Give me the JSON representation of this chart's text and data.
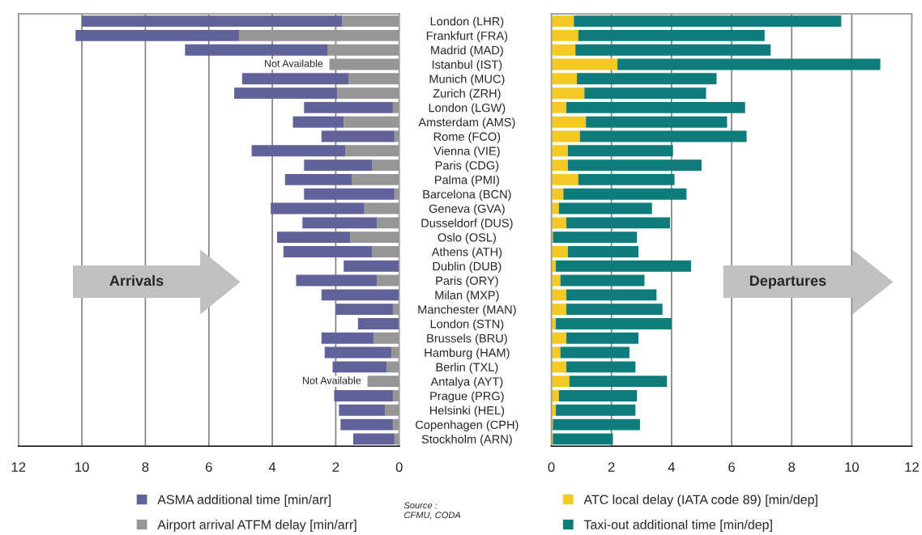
{
  "chart_data": [
    {
      "type": "bar",
      "orientation": "horizontal",
      "stacked": true,
      "tick_labels": "x",
      "grid": "x",
      "legend": "bottom",
      "categories": [
        "London (LHR)",
        "Frankfurt (FRA)",
        "Madrid (MAD)",
        "Istanbul (IST)",
        "Munich (MUC)",
        "Zurich (ZRH)",
        "London (LGW)",
        "Amsterdam (AMS)",
        "Rome (FCO)",
        "Vienna (VIE)",
        "Paris (CDG)",
        "Palma (PMI)",
        "Barcelona (BCN)",
        "Geneva (GVA)",
        "Dusseldorf (DUS)",
        "Oslo (OSL)",
        "Athens (ATH)",
        "Dublin (DUB)",
        "Paris (ORY)",
        "Milan (MXP)",
        "Manchester (MAN)",
        "London (STN)",
        "Brussels (BRU)",
        "Hamburg (HAM)",
        "Berlin (TXL)",
        "Antalya (AYT)",
        "Prague (PRG)",
        "Helsinki (HEL)",
        "Copenhagen (CPH)",
        "Stockholm (ARN)"
      ],
      "xlim": [
        12,
        0
      ],
      "xticks": [
        12,
        10,
        8,
        6,
        4,
        2,
        0
      ],
      "series": [
        {
          "name": "Airport arrival ATFM delay [min/arr]",
          "color": "#969696",
          "values": [
            1.8,
            5.05,
            2.25,
            2.2,
            1.6,
            1.95,
            0.2,
            1.75,
            0.15,
            1.7,
            0.85,
            1.5,
            0.15,
            1.1,
            0.7,
            1.55,
            0.85,
            0,
            0.7,
            0,
            0.2,
            0,
            0.8,
            0.25,
            0.4,
            1.0,
            0.2,
            0.45,
            0.2,
            0.15
          ]
        },
        {
          "name": "ASMA additional time [min/arr]",
          "color": "#62629a",
          "values": [
            8.2,
            5.15,
            4.5,
            null,
            3.35,
            3.25,
            2.8,
            1.6,
            2.3,
            2.95,
            2.15,
            2.1,
            2.85,
            2.95,
            2.35,
            2.3,
            2.8,
            1.75,
            2.55,
            2.45,
            1.8,
            1.3,
            1.65,
            2.1,
            1.7,
            null,
            1.85,
            1.45,
            1.65,
            1.3
          ]
        }
      ],
      "annotations": [
        "Not Available",
        "Not Available",
        "Arrivals",
        "Source :\nCFMU, CODA"
      ]
    },
    {
      "type": "bar",
      "orientation": "horizontal",
      "stacked": true,
      "grid": "x",
      "legend": "bottom",
      "categories": [
        "London (LHR)",
        "Frankfurt (FRA)",
        "Madrid (MAD)",
        "Istanbul (IST)",
        "Munich (MUC)",
        "Zurich (ZRH)",
        "London (LGW)",
        "Amsterdam (AMS)",
        "Rome (FCO)",
        "Vienna (VIE)",
        "Paris (CDG)",
        "Palma (PMI)",
        "Barcelona (BCN)",
        "Geneva (GVA)",
        "Dusseldorf (DUS)",
        "Oslo (OSL)",
        "Athens (ATH)",
        "Dublin (DUB)",
        "Paris (ORY)",
        "Milan (MXP)",
        "Manchester (MAN)",
        "London (STN)",
        "Brussels (BRU)",
        "Hamburg (HAM)",
        "Berlin (TXL)",
        "Antalya (AYT)",
        "Prague (PRG)",
        "Helsinki (HEL)",
        "Copenhagen (CPH)",
        "Stockholm (ARN)"
      ],
      "xlim": [
        0,
        12
      ],
      "xticks": [
        0,
        2,
        4,
        6,
        8,
        10,
        12
      ],
      "series": [
        {
          "name": "ATC local delay (IATA code 89) [min/dep]",
          "color": "#f5c923",
          "values": [
            0.75,
            0.9,
            0.8,
            2.2,
            0.85,
            1.1,
            0.5,
            1.15,
            0.95,
            0.55,
            0.55,
            0.9,
            0.4,
            0.25,
            0.5,
            0.05,
            0.55,
            0.15,
            0.3,
            0.5,
            0.5,
            0.15,
            0.5,
            0.3,
            0.5,
            0.6,
            0.25,
            0.15,
            0.05,
            0.05
          ]
        },
        {
          "name": "Taxi-out additional time [min/dep]",
          "color": "#0e7c7a",
          "values": [
            8.9,
            6.2,
            6.5,
            8.75,
            4.65,
            4.05,
            5.95,
            4.7,
            5.55,
            3.5,
            4.45,
            3.2,
            4.1,
            3.1,
            3.45,
            2.8,
            2.35,
            4.5,
            2.8,
            3.0,
            3.2,
            3.85,
            2.4,
            2.3,
            2.3,
            3.25,
            2.6,
            2.65,
            2.9,
            2.0
          ]
        }
      ],
      "annotations": [
        "Departures"
      ]
    }
  ]
}
